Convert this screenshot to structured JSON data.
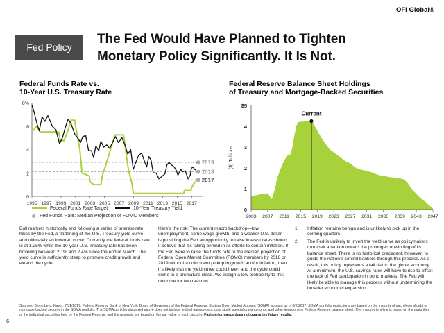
{
  "brand": "OFI Global®",
  "tag": "Fed Policy",
  "title": {
    "line1": "The Fed Would Have Planned to Tighten",
    "line2": "Monetary Policy Significantly.  It Is Not."
  },
  "body": {
    "p1": "Bull markets historically end following a series of interest-rate hikes by the Fed, a flattening of the U.S. Treasury yield curve and ultimately an inverted curve. Currently the federal funds rate is at 1.25% while the 10-year U.S. Treasury rate has been hovering between 2.1% and 2.4% since the end of March. The yield curve is sufficiently steep to promote credit growth and extend the cycle.",
    "p2": "Here’s the risk: The current macro backdrop—low unemployment, some wage growth, and a weaker U.S. dollar—is providing the Fed an opportunity to raise interest rates should it believe that it’s falling behind in its efforts to contain inflation. If the Fed were to raise the funds rate to the median projection of Federal Open Market Committee (FOMC) members by 2018 or 2019 without a coincident pickup in growth and/or inflation, then it’s likely that the yield curve could invert and the cycle could come to a premature close. We assign a low probability to this outcome for two reasons:",
    "list": [
      {
        "num": "1.",
        "text": "Inflation remains benign and is unlikely to pick up in the coming quarters."
      },
      {
        "num": "2.",
        "text": "The Fed is unlikely to invert the yield curve as policymakers turn their attention toward the prolonged unwinding of its balance sheet. There is no historical precedent, however, to guide the nation’s central bankers through this process. As a result, this policy represents a tail risk to the global economy. At a minimum, the U.S. savings rates will have to rise to offset the lack of Fed participation in bond markets. The Fed will likely be able to manage this process without undermining the broader economic expansion."
      }
    ]
  },
  "sources": "Sources: Bloomberg, Haver, 7/31/2017.  Federal Reserve Bank of New York, Board of Governors of the Federal Reserve. System Open Market Account (SOMA) account as of 8/2/2017.  SOMA portfolio projections are based on the maturity of each federal debt or mortgage-backed security in the SOMA portfolio.  The SOMA portfolio displayed above does not include federal agency debt, gold stock, special drawing rights, and other items on the Federal Reserve balance sheet.  The maturity timeline is based on the maturities of the individual securities held by the Federal Reserve, and the amounts are based on the par value of each security.",
  "sources_bold": "Past performance does not guarantee future results.",
  "page_number": "6",
  "colors": {
    "green": "#a8d23c",
    "black": "#111111",
    "gray": "#aaaaaa",
    "tag_bg": "#4a4a4a"
  },
  "chart_data": [
    {
      "type": "line",
      "title_line1": "Federal Funds Rate vs.",
      "title_line2": "10-Year U.S. Treasury Rate",
      "xlim": [
        1995,
        2018.5
      ],
      "ylim": [
        0,
        8
      ],
      "x_ticks": [
        "1995",
        "1997",
        "1999",
        "2001",
        "2003",
        "2005",
        "2007",
        "2009",
        "2011",
        "2013",
        "2015",
        "2017"
      ],
      "y_ticks": [
        "0",
        "2",
        "4",
        "6",
        "8%"
      ],
      "series": [
        {
          "name": "Federal Funds Rate Target",
          "color": "#a8d23c",
          "points": [
            [
              1995,
              5.5
            ],
            [
              1995.6,
              6.0
            ],
            [
              1995.9,
              5.75
            ],
            [
              1996.1,
              5.5
            ],
            [
              1997.2,
              5.5
            ],
            [
              1997.3,
              5.5
            ],
            [
              1998.7,
              5.5
            ],
            [
              1998.9,
              4.75
            ],
            [
              1999.4,
              4.75
            ],
            [
              1999.9,
              5.5
            ],
            [
              2000.4,
              6.5
            ],
            [
              2000.9,
              6.5
            ],
            [
              2001.0,
              6.0
            ],
            [
              2001.3,
              5.0
            ],
            [
              2001.6,
              4.0
            ],
            [
              2001.9,
              2.0
            ],
            [
              2002.9,
              1.75
            ],
            [
              2003.0,
              1.25
            ],
            [
              2003.5,
              1.0
            ],
            [
              2004.5,
              1.0
            ],
            [
              2004.7,
              1.75
            ],
            [
              2005.2,
              2.75
            ],
            [
              2005.7,
              3.75
            ],
            [
              2006.2,
              4.75
            ],
            [
              2006.5,
              5.25
            ],
            [
              2007.6,
              5.25
            ],
            [
              2007.8,
              4.5
            ],
            [
              2008.0,
              3.5
            ],
            [
              2008.3,
              2.25
            ],
            [
              2008.8,
              1.0
            ],
            [
              2008.96,
              0.25
            ],
            [
              2015.9,
              0.25
            ],
            [
              2016.0,
              0.5
            ],
            [
              2016.9,
              0.5
            ],
            [
              2017.0,
              0.75
            ],
            [
              2017.2,
              1.0
            ],
            [
              2017.5,
              1.25
            ],
            [
              2017.6,
              1.25
            ]
          ]
        },
        {
          "name": "10-Year Treasury Yield",
          "color": "#111111",
          "points": [
            [
              1995,
              7.8
            ],
            [
              1995.3,
              7.2
            ],
            [
              1995.7,
              6.2
            ],
            [
              1996.0,
              5.6
            ],
            [
              1996.4,
              6.8
            ],
            [
              1996.8,
              6.4
            ],
            [
              1997.2,
              6.9
            ],
            [
              1997.8,
              6.0
            ],
            [
              1998.3,
              5.7
            ],
            [
              1998.8,
              4.5
            ],
            [
              1999.2,
              5.0
            ],
            [
              1999.6,
              5.9
            ],
            [
              2000.0,
              6.6
            ],
            [
              2000.4,
              6.2
            ],
            [
              2000.9,
              5.3
            ],
            [
              2001.3,
              5.0
            ],
            [
              2001.7,
              4.6
            ],
            [
              2002.0,
              5.1
            ],
            [
              2002.4,
              5.2
            ],
            [
              2002.8,
              3.9
            ],
            [
              2003.2,
              3.9
            ],
            [
              2003.5,
              3.3
            ],
            [
              2003.8,
              4.3
            ],
            [
              2004.2,
              3.9
            ],
            [
              2004.5,
              4.7
            ],
            [
              2004.9,
              4.2
            ],
            [
              2005.3,
              4.4
            ],
            [
              2005.7,
              4.1
            ],
            [
              2006.1,
              4.6
            ],
            [
              2006.5,
              5.1
            ],
            [
              2006.9,
              4.6
            ],
            [
              2007.4,
              5.0
            ],
            [
              2007.8,
              4.4
            ],
            [
              2008.2,
              3.6
            ],
            [
              2008.6,
              4.0
            ],
            [
              2008.95,
              2.3
            ],
            [
              2009.3,
              2.9
            ],
            [
              2009.7,
              3.5
            ],
            [
              2010.1,
              3.7
            ],
            [
              2010.5,
              3.0
            ],
            [
              2010.8,
              2.5
            ],
            [
              2011.1,
              3.4
            ],
            [
              2011.4,
              3.1
            ],
            [
              2011.7,
              2.0
            ],
            [
              2012.1,
              2.0
            ],
            [
              2012.5,
              1.5
            ],
            [
              2012.9,
              1.7
            ],
            [
              2013.3,
              1.9
            ],
            [
              2013.6,
              2.7
            ],
            [
              2013.9,
              2.9
            ],
            [
              2014.2,
              2.7
            ],
            [
              2014.6,
              2.5
            ],
            [
              2014.9,
              2.2
            ],
            [
              2015.1,
              1.8
            ],
            [
              2015.5,
              2.3
            ],
            [
              2015.8,
              2.1
            ],
            [
              2016.1,
              2.2
            ],
            [
              2016.5,
              1.5
            ],
            [
              2016.8,
              1.8
            ],
            [
              2016.95,
              2.4
            ],
            [
              2017.2,
              2.5
            ],
            [
              2017.4,
              2.3
            ],
            [
              2017.6,
              2.25
            ]
          ]
        }
      ],
      "projections": {
        "name": "Fed Funds Rate: Median Projection of FOMC Members",
        "color": "#aaaaaa",
        "points": [
          {
            "label": "2019",
            "value": 2.9
          },
          {
            "label": "2018",
            "value": 2.1
          },
          {
            "label": "2017",
            "value": 1.4
          }
        ]
      },
      "legend": [
        "Federal Funds Rate Target",
        "10-Year Treasury Yield",
        "Fed Funds Rate: Median Projection of FOMC Members"
      ]
    },
    {
      "type": "area",
      "title_line1": "Federal Reserve Balance Sheet Holdings",
      "title_line2": "of Treasury and Mortgage-Backed Securities",
      "ylabel": "($) Trillions",
      "xlim": [
        2003,
        2047
      ],
      "ylim": [
        0,
        5
      ],
      "x_ticks": [
        "2003",
        "2007",
        "2011",
        "2015",
        "2019",
        "2023",
        "2027",
        "2031",
        "2035",
        "2039",
        "2043",
        "2047"
      ],
      "y_ticks": [
        "0",
        "1",
        "2",
        "3",
        "4",
        "$5"
      ],
      "color": "#a8d23c",
      "annotation": {
        "label": "Current",
        "x": 2017.6,
        "y": 4.25
      },
      "points": [
        [
          2003,
          0.65
        ],
        [
          2004,
          0.68
        ],
        [
          2005,
          0.72
        ],
        [
          2006,
          0.76
        ],
        [
          2007,
          0.78
        ],
        [
          2008,
          0.5
        ],
        [
          2008.8,
          1.0
        ],
        [
          2009.3,
          1.5
        ],
        [
          2010,
          1.9
        ],
        [
          2011,
          2.35
        ],
        [
          2011.8,
          2.6
        ],
        [
          2012.5,
          2.65
        ],
        [
          2013,
          3.0
        ],
        [
          2013.5,
          3.6
        ],
        [
          2014,
          4.05
        ],
        [
          2014.5,
          4.2
        ],
        [
          2015,
          4.22
        ],
        [
          2016,
          4.23
        ],
        [
          2017,
          4.24
        ],
        [
          2017.6,
          4.25
        ],
        [
          2018,
          4.15
        ],
        [
          2019,
          3.8
        ],
        [
          2020,
          3.45
        ],
        [
          2021,
          3.15
        ],
        [
          2022,
          2.9
        ],
        [
          2023,
          2.75
        ],
        [
          2024,
          2.6
        ],
        [
          2025,
          2.45
        ],
        [
          2026,
          2.3
        ],
        [
          2027,
          2.22
        ],
        [
          2028,
          2.05
        ],
        [
          2029,
          1.95
        ],
        [
          2030,
          1.9
        ],
        [
          2031,
          1.85
        ],
        [
          2032,
          1.8
        ],
        [
          2033,
          1.72
        ],
        [
          2034,
          1.65
        ],
        [
          2035,
          1.62
        ],
        [
          2036,
          1.58
        ],
        [
          2037,
          1.55
        ],
        [
          2038,
          1.53
        ],
        [
          2039,
          1.5
        ],
        [
          2040,
          1.45
        ],
        [
          2041,
          1.25
        ],
        [
          2042,
          0.95
        ],
        [
          2043,
          0.75
        ],
        [
          2044,
          0.55
        ],
        [
          2045,
          0.4
        ],
        [
          2046,
          0.22
        ],
        [
          2047,
          0.05
        ]
      ]
    }
  ]
}
